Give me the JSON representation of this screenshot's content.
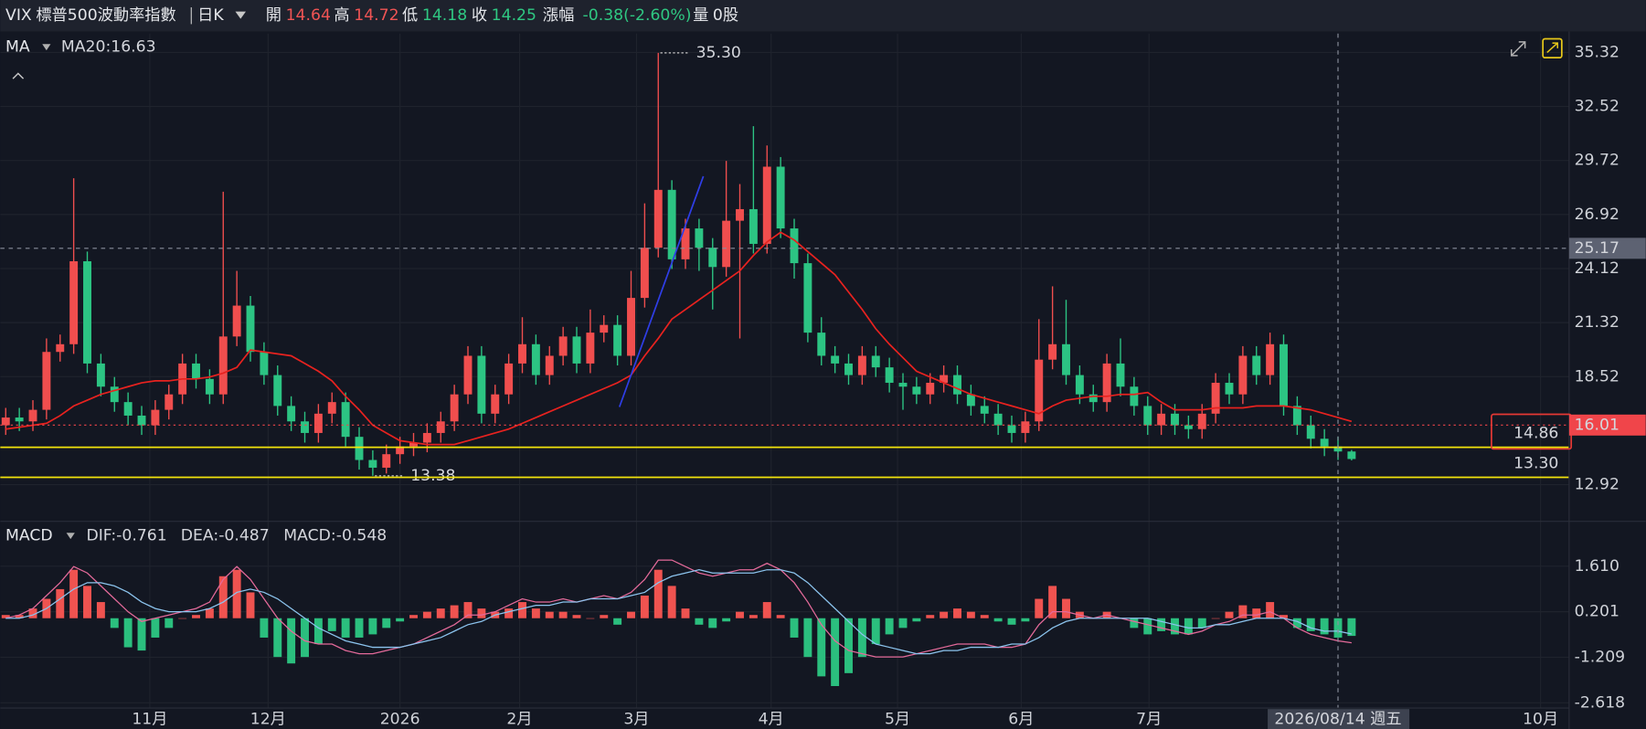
{
  "header": {
    "symbol": "VIX",
    "name": "標普500波動率指數",
    "period": "日K",
    "open_label": "開",
    "open": 14.64,
    "high_label": "高",
    "high": 14.72,
    "low_label": "低",
    "low": 14.18,
    "close_label": "收",
    "close": 14.25,
    "change_label": "漲幅",
    "change": "-0.38(-2.60%)",
    "volume_label": "量",
    "volume": "0股"
  },
  "chart_data": [
    {
      "type": "candlestick",
      "title": "MA",
      "up_color": "#f04e4e",
      "down_color": "#2cc483",
      "ohlc": [
        [
          16.0,
          16.9,
          15.5,
          16.4
        ],
        [
          16.4,
          16.9,
          15.7,
          16.2
        ],
        [
          16.2,
          17.3,
          15.7,
          16.8
        ],
        [
          16.8,
          20.5,
          16.3,
          19.8
        ],
        [
          19.8,
          20.7,
          19.3,
          20.2
        ],
        [
          20.2,
          28.8,
          19.7,
          24.5
        ],
        [
          24.5,
          25.0,
          18.7,
          19.2
        ],
        [
          19.2,
          19.7,
          17.5,
          18.0
        ],
        [
          18.0,
          18.5,
          16.7,
          17.2
        ],
        [
          17.2,
          17.7,
          16.0,
          16.5
        ],
        [
          16.5,
          17.0,
          15.5,
          16.0
        ],
        [
          16.0,
          17.3,
          15.5,
          16.8
        ],
        [
          16.8,
          18.1,
          16.3,
          17.6
        ],
        [
          17.6,
          19.7,
          17.1,
          19.2
        ],
        [
          19.2,
          19.7,
          17.9,
          18.4
        ],
        [
          18.4,
          18.9,
          17.1,
          17.6
        ],
        [
          17.6,
          28.1,
          17.1,
          20.6
        ],
        [
          20.6,
          24.0,
          20.1,
          22.2
        ],
        [
          22.2,
          22.7,
          19.3,
          19.8
        ],
        [
          19.8,
          20.3,
          18.1,
          18.6
        ],
        [
          18.6,
          19.1,
          16.5,
          17.0
        ],
        [
          17.0,
          17.5,
          15.7,
          16.2
        ],
        [
          16.2,
          16.7,
          15.1,
          15.6
        ],
        [
          15.6,
          17.1,
          15.1,
          16.6
        ],
        [
          16.6,
          17.7,
          16.1,
          17.2
        ],
        [
          17.2,
          17.7,
          14.9,
          15.4
        ],
        [
          15.4,
          15.9,
          13.7,
          14.2
        ],
        [
          14.2,
          14.7,
          13.38,
          13.8
        ],
        [
          13.8,
          15.0,
          13.5,
          14.5
        ],
        [
          14.5,
          15.4,
          14.0,
          14.9
        ],
        [
          14.9,
          15.6,
          14.4,
          15.1
        ],
        [
          15.1,
          16.1,
          14.6,
          15.6
        ],
        [
          15.6,
          16.7,
          15.1,
          16.2
        ],
        [
          16.2,
          18.1,
          15.7,
          17.6
        ],
        [
          17.6,
          20.1,
          17.1,
          19.6
        ],
        [
          19.6,
          20.1,
          16.1,
          16.6
        ],
        [
          16.6,
          18.1,
          16.1,
          17.6
        ],
        [
          17.6,
          19.7,
          17.1,
          19.2
        ],
        [
          19.2,
          21.6,
          18.7,
          20.2
        ],
        [
          20.2,
          20.7,
          18.1,
          18.6
        ],
        [
          18.6,
          20.1,
          18.1,
          19.6
        ],
        [
          19.6,
          21.1,
          19.1,
          20.6
        ],
        [
          20.6,
          21.1,
          18.7,
          19.2
        ],
        [
          19.2,
          22.0,
          18.7,
          20.8
        ],
        [
          20.8,
          21.7,
          20.3,
          21.2
        ],
        [
          21.2,
          21.7,
          19.1,
          19.6
        ],
        [
          19.6,
          24.0,
          19.1,
          22.6
        ],
        [
          22.6,
          27.5,
          22.1,
          25.2
        ],
        [
          25.2,
          35.3,
          24.7,
          28.2
        ],
        [
          28.2,
          28.7,
          24.1,
          24.6
        ],
        [
          24.6,
          26.7,
          24.1,
          26.2
        ],
        [
          26.2,
          26.7,
          24.0,
          25.2
        ],
        [
          25.2,
          25.7,
          22.0,
          24.2
        ],
        [
          24.2,
          29.7,
          23.7,
          26.6
        ],
        [
          26.6,
          28.5,
          20.5,
          27.2
        ],
        [
          27.2,
          31.5,
          24.9,
          25.4
        ],
        [
          25.4,
          30.5,
          24.9,
          29.4
        ],
        [
          29.4,
          29.9,
          25.7,
          26.2
        ],
        [
          26.2,
          26.7,
          23.6,
          24.4
        ],
        [
          24.4,
          24.9,
          20.3,
          20.8
        ],
        [
          20.8,
          21.6,
          19.1,
          19.6
        ],
        [
          19.6,
          20.1,
          18.7,
          19.2
        ],
        [
          19.2,
          19.7,
          18.1,
          18.6
        ],
        [
          18.6,
          20.1,
          18.1,
          19.6
        ],
        [
          19.6,
          20.1,
          18.5,
          19.0
        ],
        [
          19.0,
          19.5,
          17.7,
          18.2
        ],
        [
          18.2,
          18.7,
          16.8,
          18.0
        ],
        [
          18.0,
          18.5,
          17.1,
          17.6
        ],
        [
          17.6,
          18.7,
          17.1,
          18.2
        ],
        [
          18.2,
          19.1,
          17.7,
          18.6
        ],
        [
          18.6,
          19.1,
          17.1,
          17.6
        ],
        [
          17.6,
          18.1,
          16.5,
          17.0
        ],
        [
          17.0,
          17.5,
          16.1,
          16.6
        ],
        [
          16.6,
          17.1,
          15.5,
          16.0
        ],
        [
          16.0,
          16.5,
          15.1,
          15.6
        ],
        [
          15.6,
          16.7,
          15.1,
          16.2
        ],
        [
          16.2,
          21.5,
          15.7,
          19.4
        ],
        [
          19.4,
          23.2,
          18.9,
          20.2
        ],
        [
          20.2,
          22.5,
          18.1,
          18.6
        ],
        [
          18.6,
          19.1,
          17.1,
          17.6
        ],
        [
          17.6,
          18.1,
          16.7,
          17.2
        ],
        [
          17.2,
          19.7,
          16.7,
          19.2
        ],
        [
          19.2,
          20.5,
          17.5,
          18.0
        ],
        [
          18.0,
          18.5,
          16.5,
          17.0
        ],
        [
          17.0,
          17.5,
          15.5,
          16.0
        ],
        [
          16.0,
          17.1,
          15.5,
          16.6
        ],
        [
          16.6,
          17.1,
          15.5,
          16.0
        ],
        [
          16.0,
          16.5,
          15.3,
          15.8
        ],
        [
          15.8,
          17.1,
          15.3,
          16.6
        ],
        [
          16.6,
          18.7,
          16.1,
          18.2
        ],
        [
          18.2,
          18.7,
          17.1,
          17.6
        ],
        [
          17.6,
          20.1,
          17.1,
          19.6
        ],
        [
          19.6,
          20.1,
          18.1,
          18.6
        ],
        [
          18.6,
          20.8,
          18.1,
          20.2
        ],
        [
          20.2,
          20.7,
          16.5,
          17.0
        ],
        [
          17.0,
          17.5,
          15.5,
          16.0
        ],
        [
          16.0,
          16.5,
          14.8,
          15.3
        ],
        [
          15.3,
          15.8,
          14.4,
          14.9
        ],
        [
          14.9,
          15.4,
          14.2,
          14.64
        ],
        [
          14.64,
          14.72,
          14.18,
          14.25
        ]
      ],
      "ma": {
        "name": "MA20:16.63",
        "color": "#e8221f",
        "values": [
          15.8,
          15.9,
          16.0,
          16.1,
          16.5,
          17.0,
          17.3,
          17.6,
          17.8,
          18.0,
          18.2,
          18.3,
          18.3,
          18.4,
          18.4,
          18.5,
          18.7,
          19.0,
          19.9,
          19.8,
          19.7,
          19.6,
          19.2,
          18.8,
          18.3,
          17.5,
          16.8,
          16.0,
          15.6,
          15.2,
          15.1,
          15.0,
          15.0,
          15.0,
          15.2,
          15.4,
          15.6,
          15.8,
          16.1,
          16.4,
          16.7,
          17.0,
          17.3,
          17.6,
          17.9,
          18.2,
          18.6,
          19.6,
          20.5,
          21.5,
          22.0,
          22.5,
          23.0,
          23.5,
          24.0,
          24.8,
          25.5,
          26.0,
          25.6,
          25.0,
          24.4,
          23.8,
          22.9,
          22.0,
          21.0,
          20.2,
          19.5,
          18.8,
          18.5,
          18.2,
          17.9,
          17.6,
          17.4,
          17.2,
          17.0,
          16.8,
          16.6,
          17.0,
          17.3,
          17.4,
          17.5,
          17.5,
          17.6,
          17.6,
          17.7,
          17.2,
          16.8,
          16.8,
          16.8,
          16.9,
          16.9,
          16.9,
          17.0,
          17.0,
          17.0,
          16.9,
          16.8,
          16.6,
          16.4,
          16.2
        ]
      },
      "xlim": [
        -0.4,
        115
      ],
      "xticks": [
        {
          "value": 10.6,
          "label": "11月"
        },
        {
          "value": 19.3,
          "label": "12月"
        },
        {
          "value": 29.0,
          "label": "2026"
        },
        {
          "value": 37.8,
          "label": "2月"
        },
        {
          "value": 46.4,
          "label": "3月"
        },
        {
          "value": 56.3,
          "label": "4月"
        },
        {
          "value": 65.6,
          "label": "5月"
        },
        {
          "value": 74.7,
          "label": "6月"
        },
        {
          "value": 84.1,
          "label": "7月"
        },
        {
          "value": 112.9,
          "label": "10月"
        }
      ],
      "ylim": [
        11.13,
        36.3
      ],
      "yticks": [
        35.32,
        32.52,
        29.72,
        26.92,
        24.12,
        21.32,
        18.52,
        12.92
      ],
      "grid": true,
      "max_mark": {
        "value": 35.3,
        "label": "35.30"
      },
      "min_mark": {
        "value": 13.38,
        "label": "13.38"
      },
      "hlines": [
        {
          "value": 14.86,
          "color": "#f2e30c"
        },
        {
          "value": {
            "value": 13.3,
            "label": "13.30"
          },
          "color": "#f2e30c"
        }
      ],
      "last_price": {
        "value": 16.01,
        "color": "#f0454a"
      },
      "crosshair": {
        "x": 98,
        "value": 25.17,
        "label": "2026/08/14 週五"
      }
    },
    {
      "type": "macd",
      "title": "MACD",
      "series": [
        {
          "name": "DIF:-0.761",
          "color": "#e46a9a",
          "values": [
            0.0,
            0.1,
            0.3,
            0.7,
            1.1,
            1.6,
            1.4,
            1.0,
            0.6,
            0.2,
            -0.1,
            0.0,
            0.1,
            0.2,
            0.3,
            0.5,
            1.2,
            1.6,
            1.2,
            0.6,
            0.0,
            -0.4,
            -0.7,
            -0.8,
            -0.8,
            -1.0,
            -1.1,
            -1.1,
            -1.0,
            -0.9,
            -0.8,
            -0.6,
            -0.4,
            -0.2,
            0.1,
            0.1,
            0.2,
            0.4,
            0.6,
            0.5,
            0.5,
            0.6,
            0.5,
            0.6,
            0.7,
            0.6,
            0.8,
            1.2,
            1.8,
            1.8,
            1.6,
            1.4,
            1.3,
            1.4,
            1.5,
            1.5,
            1.7,
            1.5,
            1.1,
            0.5,
            -0.2,
            -0.7,
            -1.0,
            -1.1,
            -1.2,
            -1.2,
            -1.2,
            -1.1,
            -1.0,
            -0.9,
            -0.8,
            -0.8,
            -0.8,
            -0.9,
            -0.9,
            -0.8,
            -0.2,
            0.2,
            0.2,
            0.1,
            0.0,
            0.1,
            0.0,
            -0.1,
            -0.2,
            -0.3,
            -0.4,
            -0.5,
            -0.4,
            -0.2,
            -0.1,
            0.1,
            0.1,
            0.2,
            0.0,
            -0.3,
            -0.5,
            -0.6,
            -0.7,
            -0.761
          ]
        },
        {
          "name": "DEA:-0.487",
          "color": "#8cc4ee",
          "values": [
            0.0,
            0.0,
            0.1,
            0.3,
            0.6,
            0.9,
            1.1,
            1.1,
            1.0,
            0.8,
            0.5,
            0.3,
            0.2,
            0.2,
            0.2,
            0.3,
            0.5,
            0.8,
            0.9,
            0.8,
            0.6,
            0.3,
            0.0,
            -0.3,
            -0.5,
            -0.7,
            -0.8,
            -0.9,
            -0.9,
            -0.9,
            -0.8,
            -0.7,
            -0.6,
            -0.4,
            -0.2,
            -0.1,
            0.1,
            0.2,
            0.3,
            0.4,
            0.4,
            0.5,
            0.5,
            0.6,
            0.6,
            0.6,
            0.7,
            0.8,
            1.1,
            1.3,
            1.4,
            1.5,
            1.4,
            1.4,
            1.4,
            1.4,
            1.5,
            1.5,
            1.4,
            1.1,
            0.7,
            0.3,
            -0.1,
            -0.5,
            -0.8,
            -0.9,
            -1.0,
            -1.1,
            -1.1,
            -1.0,
            -1.0,
            -0.9,
            -0.9,
            -0.9,
            -0.8,
            -0.8,
            -0.6,
            -0.3,
            -0.1,
            0.0,
            0.0,
            0.0,
            0.0,
            0.0,
            0.0,
            -0.1,
            -0.2,
            -0.3,
            -0.3,
            -0.2,
            -0.2,
            -0.1,
            0.0,
            0.0,
            0.0,
            -0.1,
            -0.3,
            -0.4,
            -0.4,
            -0.487
          ]
        }
      ],
      "histogram": {
        "name": "MACD:-0.548",
        "color": "#f06464",
        "up_color": "#ef5350",
        "down_color": "#2bbf7e",
        "values": [
          0.1,
          0.1,
          0.3,
          0.6,
          0.9,
          1.5,
          1.0,
          0.5,
          -0.3,
          -0.9,
          -1.0,
          -0.6,
          -0.3,
          0.0,
          0.1,
          0.3,
          1.3,
          1.5,
          0.8,
          -0.6,
          -1.2,
          -1.4,
          -1.2,
          -0.8,
          -0.4,
          -0.6,
          -0.6,
          -0.5,
          -0.3,
          -0.1,
          0.1,
          0.2,
          0.3,
          0.4,
          0.5,
          0.3,
          0.2,
          0.3,
          0.5,
          0.3,
          0.2,
          0.2,
          0.1,
          0.0,
          0.1,
          -0.2,
          0.2,
          0.7,
          1.5,
          1.0,
          0.3,
          -0.2,
          -0.3,
          -0.1,
          0.2,
          0.1,
          0.5,
          0.1,
          -0.6,
          -1.2,
          -1.8,
          -2.1,
          -1.7,
          -1.2,
          -0.8,
          -0.5,
          -0.3,
          -0.1,
          0.1,
          0.2,
          0.3,
          0.2,
          0.1,
          -0.1,
          -0.2,
          -0.1,
          0.6,
          1.0,
          0.6,
          0.2,
          0.0,
          0.2,
          0.0,
          -0.3,
          -0.5,
          -0.4,
          -0.5,
          -0.5,
          -0.3,
          0.0,
          0.2,
          0.4,
          0.3,
          0.5,
          0.1,
          -0.3,
          -0.4,
          -0.5,
          -0.6,
          -0.548
        ]
      },
      "ylim": [
        -2.78,
        3.0
      ],
      "yticks": [
        {
          "value": 1.61,
          "label": "1.610"
        },
        0.201,
        -1.209,
        -2.618
      ]
    }
  ]
}
